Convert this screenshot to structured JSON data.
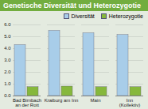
{
  "chart_data": {
    "type": "bar",
    "title": "Genetische Diversität und Heterozygotie",
    "categories": [
      "Bad Birnbach\nan der Rott",
      "Kraiburg am Inn",
      "Main",
      "Inn\n(Kollektiv)"
    ],
    "series": [
      {
        "name": "Diversität",
        "color": "#a8cde9",
        "values": [
          4.3,
          5.5,
          5.3,
          5.15
        ]
      },
      {
        "name": "Heterozygotie",
        "color": "#86b83c",
        "values": [
          0.75,
          0.8,
          0.75,
          0.75
        ]
      }
    ],
    "ylim": [
      0,
      6
    ],
    "yticks": [
      0,
      1,
      2,
      3,
      4,
      5,
      6
    ],
    "grid": true,
    "legend": "top-right"
  }
}
